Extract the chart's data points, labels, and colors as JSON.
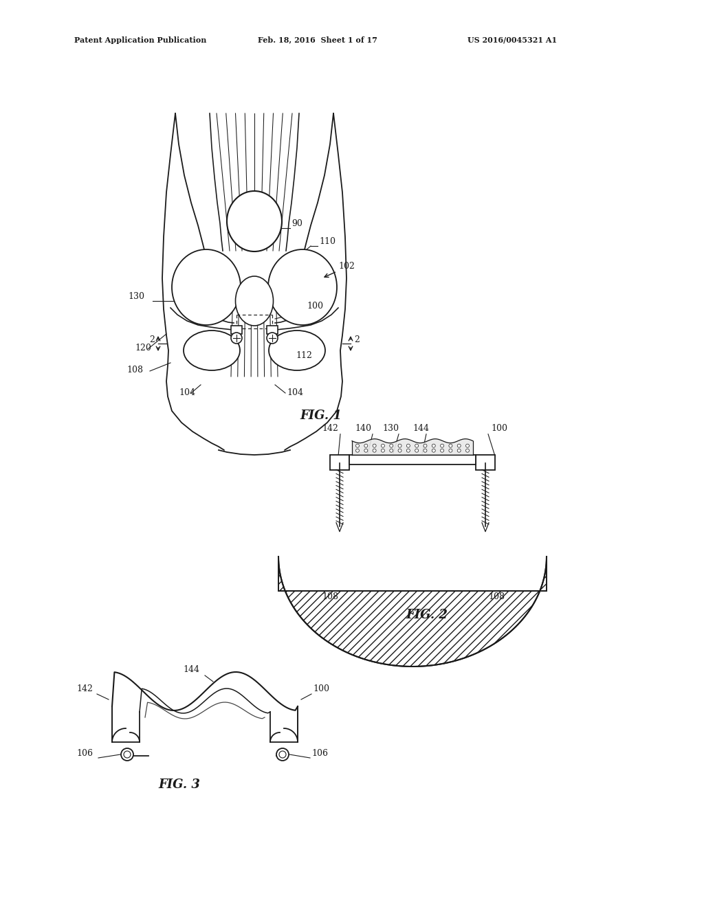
{
  "background_color": "#ffffff",
  "header_left": "Patent Application Publication",
  "header_center": "Feb. 18, 2016  Sheet 1 of 17",
  "header_right": "US 2016/0045321 A1",
  "fig1_label": "FIG. 1",
  "fig2_label": "FIG. 2",
  "fig3_label": "FIG. 3",
  "line_color": "#1a1a1a",
  "text_color": "#1a1a1a",
  "line_width": 1.3,
  "label_fontsize": 9,
  "header_fontsize": 8,
  "title_fontsize": 13
}
